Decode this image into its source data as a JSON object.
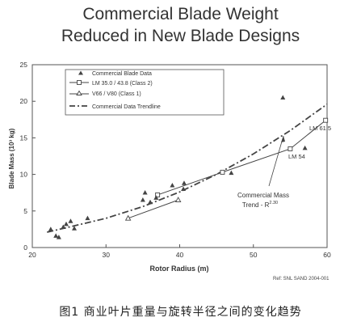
{
  "header": {
    "title_line1": "Commercial Blade Weight",
    "title_line2": "Reduced in New Blade Designs"
  },
  "chart_data": {
    "type": "scatter",
    "xlabel": "Rotor Radius (m)",
    "ylabel": "Blade Mass (10³ kg)",
    "xlim": [
      20,
      60
    ],
    "ylim": [
      0,
      25
    ],
    "xticks": [
      20,
      30,
      40,
      50,
      60
    ],
    "yticks": [
      0,
      5,
      10,
      15,
      20,
      25
    ],
    "grid": false,
    "legend_position": "top-left",
    "series": [
      {
        "name": "Commercial Blade Data",
        "marker": "triangle-filled",
        "color": "#444444",
        "points": [
          [
            22.5,
            2.5
          ],
          [
            23.2,
            1.6
          ],
          [
            23.6,
            1.4
          ],
          [
            24.2,
            2.8
          ],
          [
            24.6,
            3.2
          ],
          [
            25.2,
            3.6
          ],
          [
            25.7,
            2.6
          ],
          [
            27.5,
            4.0
          ],
          [
            35.0,
            6.5
          ],
          [
            35.3,
            7.5
          ],
          [
            36.0,
            6.2
          ],
          [
            36.8,
            6.8
          ],
          [
            39.0,
            8.5
          ],
          [
            40.5,
            8.0
          ],
          [
            40.6,
            8.8
          ],
          [
            47.0,
            10.2
          ],
          [
            54.0,
            20.5
          ],
          [
            57.0,
            13.6
          ]
        ]
      },
      {
        "name": "LM 35.0 / 43.8 (Class 2)",
        "marker": "square-open",
        "color": "#444444",
        "points": [
          [
            37.0,
            7.2
          ],
          [
            45.8,
            10.3
          ],
          [
            55.0,
            13.5
          ],
          [
            59.8,
            17.4
          ]
        ]
      },
      {
        "name": "V66 / V80 (Class 1)",
        "marker": "triangle-open",
        "color": "#444444",
        "points": [
          [
            33.0,
            4.0
          ],
          [
            39.8,
            6.5
          ]
        ]
      },
      {
        "name": "Commercial Data Trendline",
        "style": "dash-dot",
        "color": "#444444",
        "points": [
          [
            22,
            2.1
          ],
          [
            25,
            2.8
          ],
          [
            30,
            4.0
          ],
          [
            35,
            5.6
          ],
          [
            40,
            7.6
          ],
          [
            45,
            10.0
          ],
          [
            50,
            12.8
          ],
          [
            55,
            16.0
          ],
          [
            60,
            19.6
          ]
        ]
      }
    ],
    "annotations": {
      "lm615": "LM 61.5",
      "lm54": "LM 54",
      "trend_line1": "Commercial Mass",
      "trend_line2": "Trend - R",
      "trend_exp": "2.30"
    }
  },
  "footer": {
    "reference": "Ref: SNL SAND 2004-001",
    "caption": "图1 商业叶片重量与旋转半径之间的变化趋势"
  }
}
